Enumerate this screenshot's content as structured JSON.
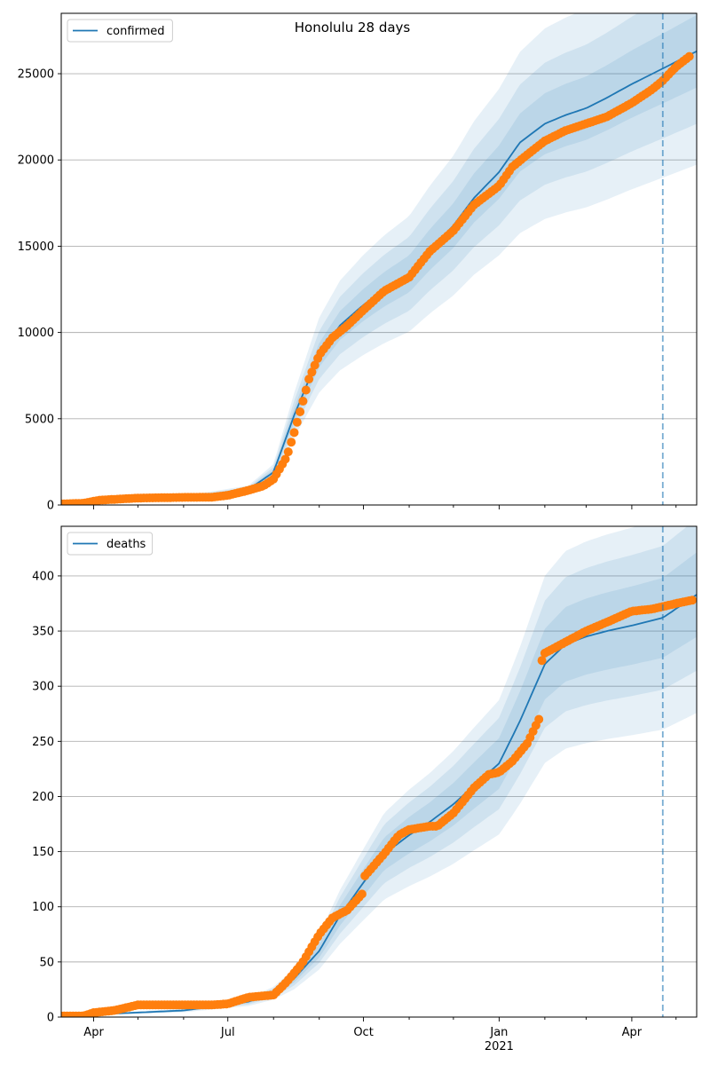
{
  "figure": {
    "title": "Honolulu 28 days"
  },
  "chart_data": [
    {
      "type": "line",
      "legend": "top-left",
      "grid": "horizontal",
      "ylim": [
        0,
        28500
      ],
      "yticks": [
        0,
        5000,
        10000,
        15000,
        20000,
        25000
      ],
      "xlim": [
        "2020-03-10",
        "2021-05-15"
      ],
      "vline": "2021-04-22",
      "series": [
        {
          "name": "confirmed",
          "color": "#1f77b4",
          "x": [
            "2020-03-10",
            "2020-06-01",
            "2020-07-15",
            "2020-08-01",
            "2020-08-15",
            "2020-09-01",
            "2020-09-15",
            "2020-10-01",
            "2020-10-15",
            "2020-11-01",
            "2020-11-15",
            "2020-12-01",
            "2020-12-15",
            "2021-01-01",
            "2021-01-15",
            "2021-02-01",
            "2021-02-15",
            "2021-03-01",
            "2021-03-15",
            "2021-04-01",
            "2021-04-22",
            "2021-05-15"
          ],
          "y": [
            50,
            420,
            900,
            1900,
            5200,
            8700,
            10400,
            11600,
            12500,
            13400,
            14800,
            16200,
            17800,
            19300,
            21000,
            22100,
            22600,
            23000,
            23600,
            24400,
            25300,
            26300
          ],
          "band": [
            [
              0.92,
              1.08
            ],
            [
              0.84,
              1.16
            ],
            [
              0.75,
              1.25
            ]
          ]
        }
      ],
      "observed": {
        "color": "#ff7f0e",
        "x": [
          "2020-03-10",
          "2020-03-25",
          "2020-04-05",
          "2020-05-01",
          "2020-06-01",
          "2020-06-20",
          "2020-07-01",
          "2020-07-15",
          "2020-07-25",
          "2020-08-01",
          "2020-08-10",
          "2020-08-15",
          "2020-08-20",
          "2020-08-25",
          "2020-09-01",
          "2020-09-10",
          "2020-09-20",
          "2020-10-01",
          "2020-10-15",
          "2020-11-01",
          "2020-11-15",
          "2020-12-01",
          "2020-12-15",
          "2021-01-01",
          "2021-01-10",
          "2021-01-20",
          "2021-02-01",
          "2021-02-15",
          "2021-03-01",
          "2021-03-15",
          "2021-04-01",
          "2021-04-15",
          "2021-04-22",
          "2021-05-01",
          "2021-05-10"
        ],
        "y": [
          60,
          100,
          280,
          400,
          440,
          450,
          560,
          850,
          1100,
          1500,
          2800,
          4200,
          5700,
          7300,
          8700,
          9700,
          10400,
          11300,
          12400,
          13200,
          14700,
          15900,
          17400,
          18500,
          19600,
          20300,
          21100,
          21700,
          22100,
          22500,
          23300,
          24100,
          24600,
          25400,
          26000
        ]
      }
    },
    {
      "type": "line",
      "legend": "top-left",
      "grid": "horizontal",
      "ylim": [
        0,
        445
      ],
      "yticks": [
        0,
        50,
        100,
        150,
        200,
        250,
        300,
        350,
        400
      ],
      "xlim": [
        "2020-03-10",
        "2021-05-15"
      ],
      "xticks": [
        "Apr",
        "Jul",
        "Oct",
        "Jan",
        "Apr"
      ],
      "xticks_dates": [
        "2020-04-01",
        "2020-07-01",
        "2020-10-01",
        "2021-01-01",
        "2021-04-01"
      ],
      "xlabel_year": "2021",
      "vline": "2021-04-22",
      "series": [
        {
          "name": "deaths",
          "color": "#1f77b4",
          "x": [
            "2020-03-10",
            "2020-06-01",
            "2020-07-15",
            "2020-08-01",
            "2020-08-15",
            "2020-09-01",
            "2020-09-15",
            "2020-10-01",
            "2020-10-15",
            "2020-11-01",
            "2020-11-15",
            "2020-12-01",
            "2020-12-15",
            "2021-01-01",
            "2021-01-15",
            "2021-02-01",
            "2021-02-15",
            "2021-03-01",
            "2021-03-15",
            "2021-04-01",
            "2021-04-22",
            "2021-05-15"
          ],
          "y": [
            1,
            6,
            14,
            22,
            35,
            60,
            92,
            122,
            148,
            165,
            177,
            193,
            210,
            230,
            268,
            320,
            338,
            345,
            350,
            355,
            362,
            383
          ],
          "band": [
            [
              0.9,
              1.1
            ],
            [
              0.82,
              1.18
            ],
            [
              0.72,
              1.25
            ]
          ]
        }
      ],
      "observed": {
        "color": "#ff7f0e",
        "x": [
          "2020-03-10",
          "2020-03-25",
          "2020-04-01",
          "2020-04-15",
          "2020-05-01",
          "2020-06-01",
          "2020-06-20",
          "2020-07-01",
          "2020-07-15",
          "2020-08-01",
          "2020-08-10",
          "2020-08-20",
          "2020-09-01",
          "2020-09-10",
          "2020-09-20",
          "2020-10-01",
          "2020-10-02",
          "2020-10-15",
          "2020-10-25",
          "2020-11-01",
          "2020-11-15",
          "2020-11-20",
          "2020-12-01",
          "2020-12-15",
          "2020-12-25",
          "2021-01-01",
          "2021-01-10",
          "2021-01-20",
          "2021-01-28",
          "2021-01-29",
          "2021-02-01",
          "2021-02-15",
          "2021-03-01",
          "2021-03-15",
          "2021-04-01",
          "2021-04-15",
          "2021-05-01",
          "2021-05-12"
        ],
        "y": [
          1,
          1,
          4,
          6,
          11,
          11,
          11,
          12,
          18,
          20,
          32,
          48,
          75,
          90,
          97,
          113,
          128,
          148,
          165,
          170,
          173,
          173,
          185,
          208,
          220,
          222,
          232,
          248,
          270,
          320,
          330,
          340,
          350,
          358,
          368,
          370,
          375,
          378
        ]
      }
    }
  ]
}
